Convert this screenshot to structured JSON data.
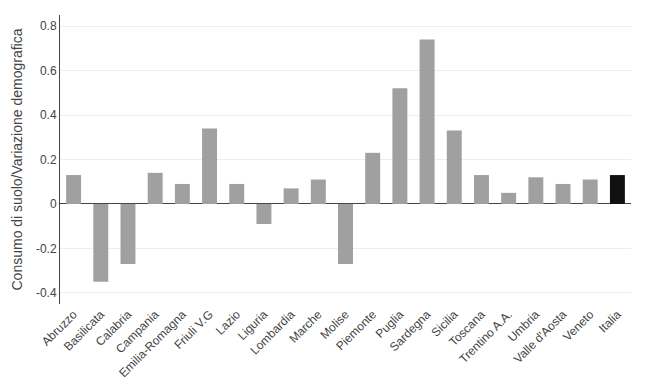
{
  "chart_data": {
    "type": "bar",
    "categories": [
      "Abruzzo",
      "Basilicata",
      "Calabria",
      "Campania",
      "Emilia-Romagna",
      "Friuli V.G",
      "Lazio",
      "Liguria",
      "Lombardia",
      "Marche",
      "Molise",
      "Piemonte",
      "Puglia",
      "Sardegna",
      "Sicilia",
      "Toscana",
      "Trentino A.A.",
      "Umbria",
      "Valle d'Aosta",
      "Veneto",
      "Italia"
    ],
    "values": [
      0.13,
      -0.35,
      -0.27,
      0.14,
      0.09,
      0.34,
      0.09,
      -0.09,
      0.07,
      0.11,
      -0.27,
      0.23,
      0.52,
      0.74,
      0.33,
      0.13,
      0.05,
      0.12,
      0.09,
      0.11,
      0.13
    ],
    "colors": [
      "#a0a0a0",
      "#a0a0a0",
      "#a0a0a0",
      "#a0a0a0",
      "#a0a0a0",
      "#a0a0a0",
      "#a0a0a0",
      "#a0a0a0",
      "#a0a0a0",
      "#a0a0a0",
      "#a0a0a0",
      "#a0a0a0",
      "#a0a0a0",
      "#a0a0a0",
      "#a0a0a0",
      "#a0a0a0",
      "#a0a0a0",
      "#a0a0a0",
      "#a0a0a0",
      "#a0a0a0",
      "#111111"
    ],
    "ylabel": "Consumo di suolo/Variazione demografica",
    "ylim": [
      -0.45,
      0.85
    ],
    "yticks": [
      -0.4,
      -0.2,
      0,
      0.2,
      0.4,
      0.6,
      0.8
    ],
    "grid": true
  }
}
